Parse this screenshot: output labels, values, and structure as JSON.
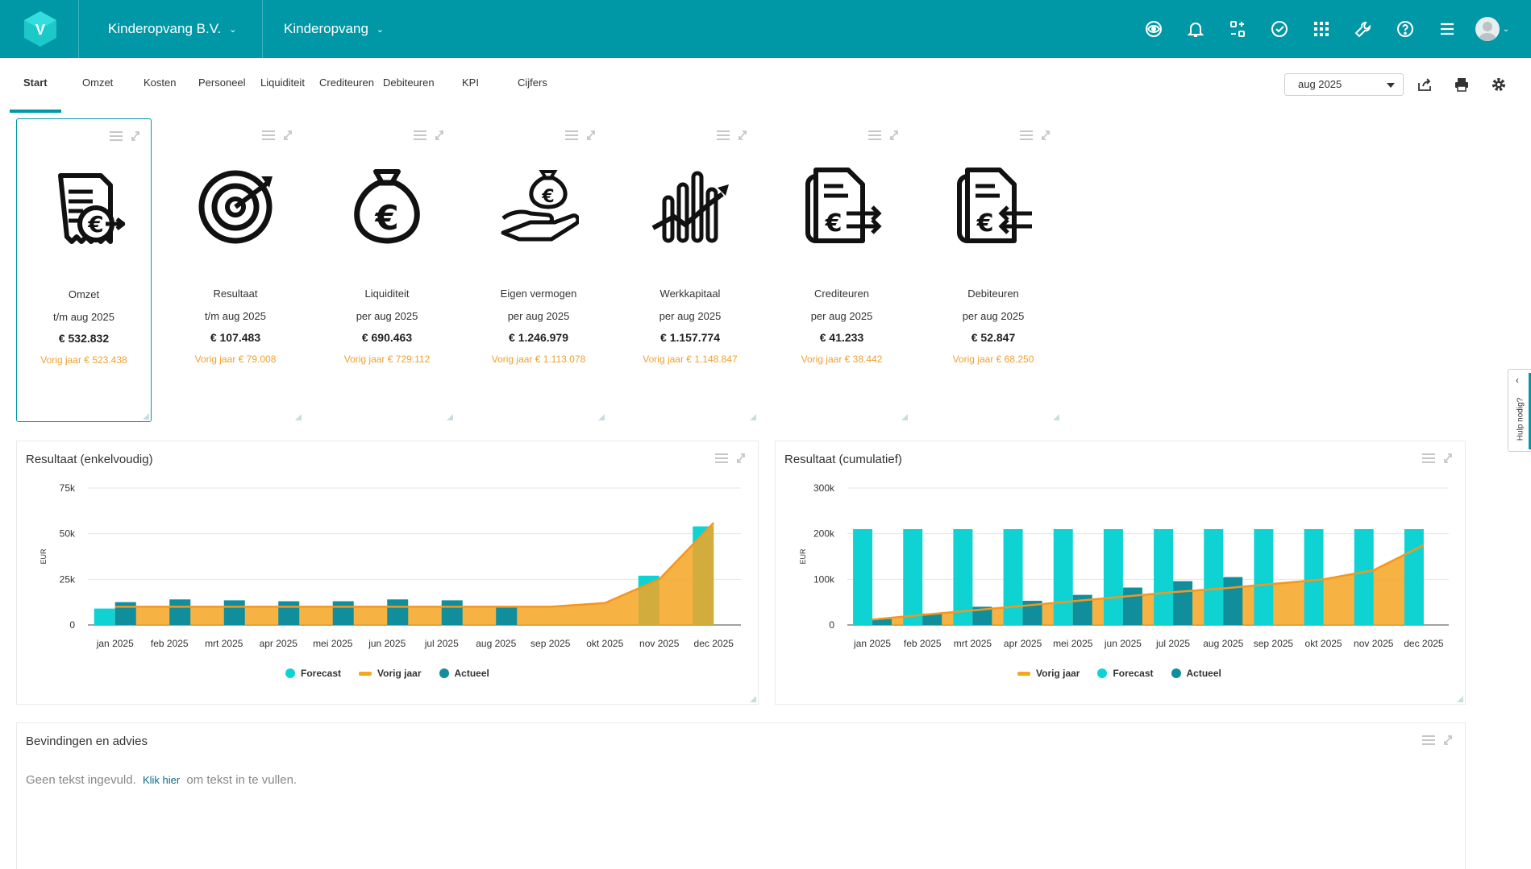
{
  "header": {
    "company": "Kinderopvang B.V.",
    "administration": "Kinderopvang",
    "icons": [
      "eye-shield-icon",
      "bell-icon",
      "switch-icon",
      "check-circle-icon",
      "apps-grid-icon",
      "wrench-icon",
      "help-icon",
      "menu-icon"
    ]
  },
  "tabs": [
    "Start",
    "Omzet",
    "Kosten",
    "Personeel",
    "Liquiditeit",
    "Crediteuren",
    "Debiteuren",
    "KPI",
    "Cijfers"
  ],
  "period": "aug 2025",
  "kpis": [
    {
      "icon": "receipt-euro-icon",
      "title": "Omzet",
      "period": "t/m aug 2025",
      "value": "€ 532.832",
      "prev": "Vorig jaar € 523.438"
    },
    {
      "icon": "target-icon",
      "title": "Resultaat",
      "period": "t/m aug 2025",
      "value": "€ 107.483",
      "prev": "Vorig jaar € 79.008"
    },
    {
      "icon": "money-bag-icon",
      "title": "Liquiditeit",
      "period": "per  aug 2025",
      "value": "€ 690.463",
      "prev": "Vorig jaar € 729.112"
    },
    {
      "icon": "hand-money-icon",
      "title": "Eigen vermogen",
      "period": "per  aug 2025",
      "value": "€ 1.246.979",
      "prev": "Vorig jaar € 1.113.078"
    },
    {
      "icon": "growth-chart-icon",
      "title": "Werkkapitaal",
      "period": "per  aug 2025",
      "value": "€ 1.157.774",
      "prev": "Vorig jaar € 1.148.847"
    },
    {
      "icon": "invoice-out-icon",
      "title": "Crediteuren",
      "period": "per  aug 2025",
      "value": "€ 41.233",
      "prev": "Vorig jaar € 38.442"
    },
    {
      "icon": "invoice-in-icon",
      "title": "Debiteuren",
      "period": "per  aug 2025",
      "value": "€ 52.847",
      "prev": "Vorig jaar € 68.250"
    }
  ],
  "colors": {
    "brand": "#0097a7",
    "forecast": "#0fd3d3",
    "vorig_jaar": "#f5a623",
    "actueel": "#108e9c"
  },
  "charts": [
    {
      "title": "Resultaat (enkelvoudig)",
      "ylabel": "EUR",
      "legend": [
        "Forecast",
        "Vorig jaar",
        "Actueel"
      ],
      "chart_data": {
        "type": "bar",
        "categories": [
          "jan 2025",
          "feb 2025",
          "mrt 2025",
          "apr 2025",
          "mei 2025",
          "jun 2025",
          "jul 2025",
          "aug 2025",
          "sep 2025",
          "okt 2025",
          "nov 2025",
          "dec 2025"
        ],
        "ylim": [
          0,
          75000
        ],
        "yticks": [
          "0",
          "25k",
          "50k",
          "75k"
        ],
        "series": [
          {
            "name": "Forecast",
            "type": "bar",
            "values": [
              9000,
              0,
              0,
              0,
              0,
              0,
              0,
              0,
              0,
              0,
              27000,
              54000
            ]
          },
          {
            "name": "Vorig jaar",
            "type": "area",
            "values": [
              10000,
              10000,
              10000,
              10000,
              10000,
              10000,
              10000,
              10000,
              10000,
              12000,
              25000,
              56000
            ]
          },
          {
            "name": "Actueel",
            "type": "bar",
            "values": [
              12500,
              14000,
              13500,
              13000,
              13000,
              14000,
              13500,
              9500,
              0,
              0,
              0,
              0
            ]
          }
        ]
      }
    },
    {
      "title": "Resultaat (cumulatief)",
      "ylabel": "EUR",
      "legend": [
        "Vorig jaar",
        "Forecast",
        "Actueel"
      ],
      "chart_data": {
        "type": "bar",
        "categories": [
          "jan 2025",
          "feb 2025",
          "mrt 2025",
          "apr 2025",
          "mei 2025",
          "jun 2025",
          "jul 2025",
          "aug 2025",
          "sep 2025",
          "okt 2025",
          "nov 2025",
          "dec 2025"
        ],
        "ylim": [
          0,
          300000
        ],
        "yticks": [
          "0",
          "100k",
          "200k",
          "300k"
        ],
        "series": [
          {
            "name": "Vorig jaar",
            "type": "area",
            "values": [
              12000,
              22000,
              32000,
              42000,
              52000,
              62000,
              72000,
              80000,
              90000,
              100000,
              120000,
              175000
            ]
          },
          {
            "name": "Forecast",
            "type": "bar",
            "values": [
              210000,
              210000,
              210000,
              210000,
              210000,
              210000,
              210000,
              210000,
              210000,
              210000,
              210000,
              210000
            ]
          },
          {
            "name": "Actueel",
            "type": "bar",
            "values": [
              13000,
              25000,
              40000,
              53000,
              66000,
              82000,
              96000,
              105000,
              0,
              0,
              0,
              0
            ]
          }
        ]
      }
    }
  ],
  "advies": {
    "title": "Bevindingen en advies",
    "text_before": "Geen tekst ingevuld.",
    "link": "Klik hier",
    "text_after": "om tekst in te vullen."
  },
  "help": {
    "label": "Hulp nodig?"
  }
}
